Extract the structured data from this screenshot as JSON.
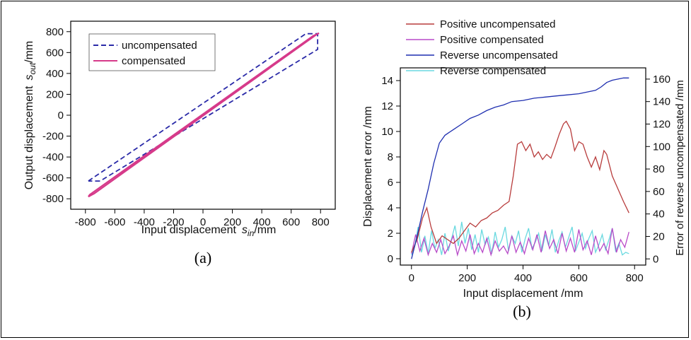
{
  "chart_data": [
    {
      "type": "line",
      "panel_label": "(a)",
      "xlabel": "Input displacement",
      "xlabel_var": "s",
      "xlabel_sub": "in",
      "xlabel_unit": "/mm",
      "ylabel": "Output displacement",
      "ylabel_var": "s",
      "ylabel_sub": "out",
      "ylabel_unit": "/mm",
      "xlim": [
        -900,
        900
      ],
      "ylim": [
        -900,
        900
      ],
      "xticks": [
        -800,
        -600,
        -400,
        -200,
        0,
        200,
        400,
        600,
        800
      ],
      "yticks": [
        -800,
        -600,
        -400,
        -200,
        0,
        200,
        400,
        600,
        800
      ],
      "legend_position": "top-left",
      "series": [
        {
          "name": "uncompensated",
          "color": "#2a2aa8",
          "style": "dashed",
          "x": [
            -780,
            700,
            780,
            780,
            -700,
            -780
          ],
          "y": [
            -630,
            780,
            780,
            630,
            -630,
            -630
          ]
        },
        {
          "name": "compensated",
          "color": "#d63a8a",
          "style": "solid",
          "x": [
            -780,
            -740,
            780,
            790,
            750,
            -770,
            -780
          ],
          "y": [
            -780,
            -750,
            780,
            785,
            760,
            -760,
            -780
          ]
        }
      ]
    },
    {
      "type": "line",
      "panel_label": "(b)",
      "xlabel": "Input displacement  /mm",
      "ylabel": "Displacement error /mm",
      "y2label": "Error of reverse uncompensated /mm",
      "xlim": [
        -40,
        840
      ],
      "ylim": [
        -0.5,
        15
      ],
      "y2lim": [
        -5.5,
        170
      ],
      "xticks": [
        0,
        200,
        400,
        600,
        800
      ],
      "yticks": [
        0,
        2,
        4,
        6,
        8,
        10,
        12,
        14
      ],
      "y2ticks": [
        0,
        20,
        40,
        60,
        80,
        100,
        120,
        140,
        160
      ],
      "legend_position": "top-left",
      "series": [
        {
          "name": "Positive uncompensated",
          "color": "#b83c3c",
          "axis": "left",
          "x": [
            0,
            20,
            40,
            55,
            70,
            90,
            110,
            130,
            150,
            170,
            190,
            210,
            230,
            250,
            270,
            290,
            310,
            330,
            350,
            365,
            380,
            395,
            410,
            425,
            440,
            455,
            470,
            485,
            500,
            515,
            530,
            545,
            555,
            570,
            585,
            600,
            615,
            630,
            645,
            660,
            675,
            690,
            700,
            720,
            740,
            760,
            780
          ],
          "y": [
            0.5,
            1.5,
            3.2,
            4.0,
            2.5,
            1.2,
            1.8,
            1.5,
            1.2,
            1.6,
            2.2,
            2.8,
            2.5,
            3.0,
            3.2,
            3.6,
            3.8,
            4.2,
            4.5,
            6.5,
            9.0,
            9.2,
            8.5,
            9.0,
            8.0,
            8.4,
            7.8,
            8.2,
            7.9,
            8.8,
            9.8,
            10.6,
            10.8,
            10.2,
            8.5,
            9.2,
            9.0,
            8.0,
            7.2,
            8.0,
            7.0,
            8.5,
            8.2,
            6.5,
            5.5,
            4.5,
            3.6
          ]
        },
        {
          "name": "Positive compensated",
          "color": "#b84ac8",
          "axis": "left",
          "x": [
            0,
            15,
            30,
            45,
            60,
            75,
            90,
            105,
            120,
            135,
            150,
            165,
            180,
            195,
            210,
            225,
            240,
            255,
            270,
            285,
            300,
            315,
            330,
            345,
            360,
            375,
            390,
            405,
            420,
            435,
            450,
            465,
            480,
            495,
            510,
            525,
            540,
            555,
            570,
            585,
            600,
            615,
            630,
            645,
            660,
            675,
            690,
            705,
            720,
            735,
            750,
            765,
            780
          ],
          "y": [
            0.4,
            1.9,
            0.6,
            1.6,
            0.3,
            1.2,
            0.5,
            1.5,
            0.4,
            1.0,
            1.8,
            0.3,
            1.4,
            0.6,
            1.9,
            0.4,
            1.2,
            0.5,
            1.6,
            0.3,
            1.4,
            0.6,
            1.0,
            0.4,
            1.8,
            0.5,
            1.3,
            0.4,
            1.6,
            0.7,
            1.9,
            0.5,
            2.2,
            0.8,
            1.5,
            0.4,
            2.0,
            0.6,
            1.6,
            0.5,
            2.3,
            0.7,
            1.4,
            0.3,
            1.8,
            0.6,
            1.2,
            0.4,
            2.4,
            0.5,
            1.5,
            0.9,
            2.1
          ]
        },
        {
          "name": "Reverse uncompensated",
          "color": "#1f2fb0",
          "axis": "right",
          "x": [
            0,
            20,
            40,
            60,
            80,
            100,
            120,
            150,
            180,
            210,
            240,
            270,
            300,
            330,
            360,
            400,
            440,
            480,
            520,
            560,
            600,
            640,
            660,
            680,
            700,
            720,
            740,
            760,
            780
          ],
          "y": [
            0,
            20,
            42,
            62,
            85,
            103,
            110,
            115,
            120,
            125,
            128,
            132,
            135,
            137,
            140,
            141,
            143,
            144,
            145,
            146,
            147,
            149,
            150,
            153,
            157,
            159,
            160,
            161,
            161
          ]
        },
        {
          "name": "Reverse compensated",
          "color": "#6ad9e0",
          "axis": "left",
          "x": [
            0,
            12,
            24,
            36,
            48,
            60,
            72,
            84,
            96,
            108,
            120,
            132,
            144,
            156,
            168,
            180,
            192,
            204,
            216,
            228,
            240,
            252,
            264,
            276,
            288,
            300,
            312,
            324,
            336,
            348,
            360,
            372,
            384,
            396,
            408,
            420,
            432,
            444,
            456,
            468,
            480,
            492,
            504,
            516,
            528,
            540,
            552,
            564,
            576,
            588,
            600,
            612,
            624,
            636,
            648,
            660,
            672,
            684,
            696,
            708,
            720,
            732,
            744,
            756,
            768,
            780
          ],
          "y": [
            0.3,
            1.0,
            2.5,
            0.5,
            1.8,
            0.4,
            2.2,
            0.8,
            1.5,
            0.3,
            2.0,
            0.6,
            1.6,
            2.6,
            1.0,
            2.9,
            1.2,
            2.4,
            0.7,
            1.9,
            0.5,
            2.3,
            1.1,
            1.7,
            0.4,
            2.1,
            0.9,
            1.5,
            2.5,
            0.6,
            1.8,
            1.2,
            2.2,
            0.5,
            1.6,
            2.4,
            0.8,
            1.3,
            2.0,
            0.6,
            1.9,
            1.0,
            2.3,
            0.5,
            1.4,
            2.1,
            0.9,
            1.7,
            2.5,
            0.6,
            1.3,
            2.0,
            0.8,
            1.6,
            2.2,
            0.5,
            1.1,
            1.9,
            0.7,
            1.5,
            2.4,
            0.6,
            1.2,
            0.3,
            0.5,
            0.4
          ]
        }
      ]
    }
  ]
}
